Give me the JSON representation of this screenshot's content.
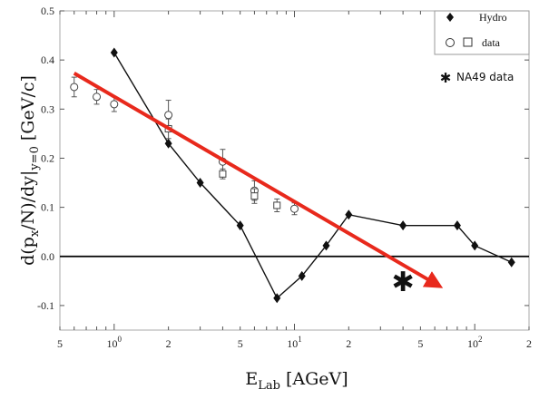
{
  "chart_data": {
    "type": "line",
    "xscale": "log",
    "xlim": [
      0.5,
      200
    ],
    "ylim": [
      -0.15,
      0.5
    ],
    "xlabel": "E_Lab [AGeV]",
    "ylabel": "d(p_x/N)/dy|_y=0 [GeV/c]",
    "x_tick_labels": [
      {
        "value": 0.5,
        "base": "5",
        "sup": ""
      },
      {
        "value": 1,
        "base": "10",
        "sup": "0"
      },
      {
        "value": 2,
        "base": "2",
        "sup": ""
      },
      {
        "value": 5,
        "base": "5",
        "sup": ""
      },
      {
        "value": 10,
        "base": "10",
        "sup": "1"
      },
      {
        "value": 20,
        "base": "2",
        "sup": ""
      },
      {
        "value": 50,
        "base": "5",
        "sup": ""
      },
      {
        "value": 100,
        "base": "10",
        "sup": "2"
      },
      {
        "value": 200,
        "base": "2",
        "sup": ""
      }
    ],
    "y_ticks": [
      -0.1,
      0.0,
      0.1,
      0.2,
      0.3,
      0.4,
      0.5
    ],
    "y_tick_labels": [
      "-0.1",
      "0.0",
      "0.1",
      "0.2",
      "0.3",
      "0.4",
      "0.5"
    ],
    "zero_line": true,
    "grid": false,
    "legend": {
      "placement": "top-right",
      "hydro_label": "Hydro",
      "data_label": "data"
    },
    "series": [
      {
        "name": "Hydro",
        "marker": "diamond",
        "color": "#111111",
        "x": [
          1,
          2,
          3,
          5,
          8,
          11,
          15,
          20,
          40,
          80,
          100,
          160
        ],
        "y": [
          0.415,
          0.23,
          0.15,
          0.063,
          -0.085,
          -0.04,
          0.022,
          0.085,
          0.063,
          0.063,
          0.022,
          -0.012
        ]
      },
      {
        "name": "data",
        "marker": "circle",
        "x": [
          0.6,
          0.8,
          1,
          2,
          4,
          6,
          10
        ],
        "y": [
          0.345,
          0.325,
          0.31,
          0.288,
          0.193,
          0.134,
          0.097
        ],
        "err": [
          0.02,
          0.015,
          0.015,
          0.03,
          0.025,
          0.02,
          0.012
        ]
      },
      {
        "name": "data",
        "marker": "square",
        "x": [
          2,
          4,
          6,
          8
        ],
        "y": [
          0.26,
          0.168,
          0.123,
          0.104
        ],
        "err": [
          0.02,
          0.01,
          0.015,
          0.013
        ]
      }
    ],
    "annotations": {
      "trend_arrow": {
        "color": "#e8291c",
        "x1": 0.6,
        "y1": 0.373,
        "x2": 62,
        "y2": -0.058
      },
      "na49_marker": {
        "symbol": "✱",
        "x": 40,
        "y": -0.05
      },
      "na49_label": "NA49 data"
    }
  }
}
